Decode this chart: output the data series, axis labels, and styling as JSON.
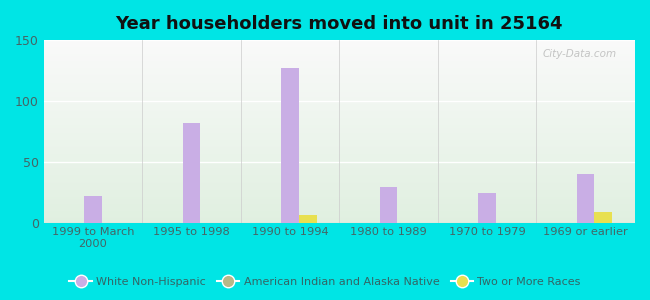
{
  "title": "Year householders moved into unit in 25164",
  "categories": [
    "1999 to March\n2000",
    "1995 to 1998",
    "1990 to 1994",
    "1980 to 1989",
    "1970 to 1979",
    "1969 or earlier"
  ],
  "white_non_hispanic": [
    22,
    82,
    127,
    29,
    24,
    40
  ],
  "american_indian": [
    0,
    0,
    0,
    0,
    0,
    0
  ],
  "two_or_more": [
    0,
    0,
    6,
    0,
    0,
    9
  ],
  "bar_color_white": "#c9aee5",
  "bar_color_indian": "#b8b888",
  "bar_color_two": "#e8e050",
  "background_outer": "#00e5e5",
  "background_plot_top": "#eaf2ea",
  "background_plot_bottom": "#d6ead6",
  "ylim": [
    0,
    150
  ],
  "yticks": [
    0,
    50,
    100,
    150
  ],
  "bar_width": 0.18,
  "watermark": "City-Data.com",
  "legend_labels": [
    "White Non-Hispanic",
    "American Indian and Alaska Native",
    "Two or More Races"
  ]
}
